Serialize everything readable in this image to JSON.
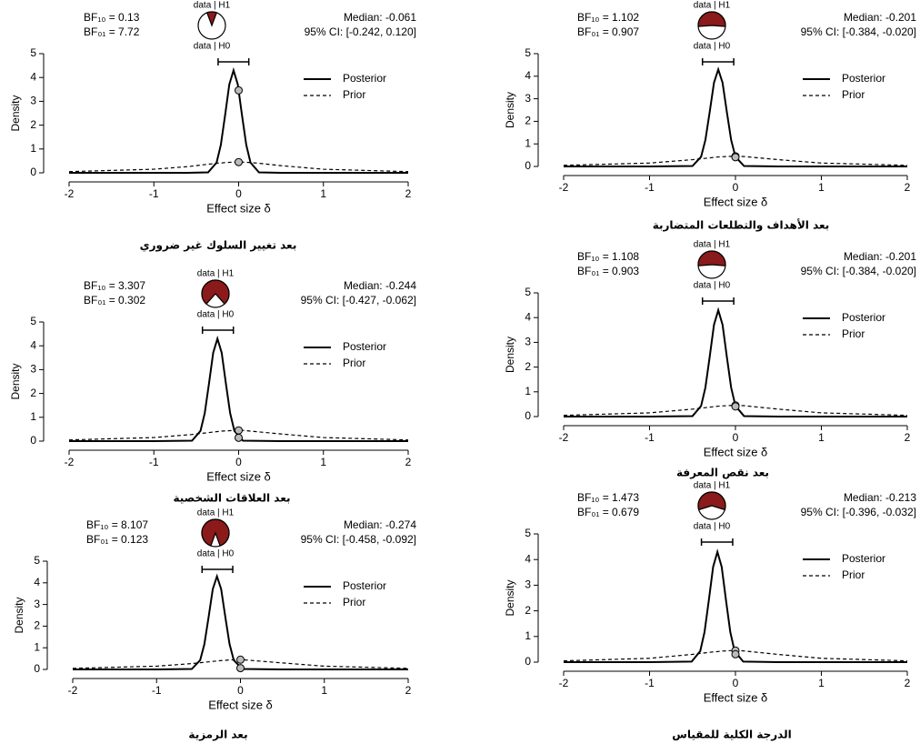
{
  "chart_data": [
    {
      "type": "prior_posterior",
      "title": "بعد تغيير السلوك غير ضروري",
      "xlabel": "Effect size δ",
      "ylabel": "Density",
      "bf10": {
        "value": 0.13,
        "label": "BF₁₀ = 0.13"
      },
      "bf01": "BF₀₁ = 7.72",
      "pie_labels": [
        "data | H1",
        "data | H0"
      ],
      "pie_color": "#8b1a1a",
      "median": "Median: -0.061",
      "ci": {
        "lower": -0.242,
        "upper": 0.12,
        "label": "95% CI: [-0.242, 0.120]"
      },
      "xlim": [
        -2,
        2
      ],
      "ylim": [
        0,
        5
      ],
      "xticks": [
        -2,
        -1,
        0,
        1,
        2
      ],
      "yticks": [
        0,
        1,
        2,
        3,
        4,
        5
      ],
      "x": [
        -2,
        -1,
        -0.6,
        -0.36,
        -0.26,
        -0.21,
        -0.16,
        -0.11,
        -0.06,
        -0.01,
        0.04,
        0.09,
        0.14,
        0.24,
        0.5,
        1,
        2
      ],
      "series": [
        {
          "name": "Posterior",
          "color": "#000000",
          "dashed": false,
          "values": [
            0,
            0,
            0,
            0.02,
            0.43,
            1.17,
            2.41,
            3.71,
            4.3,
            3.71,
            2.41,
            1.17,
            0.43,
            0.02,
            0,
            0,
            0
          ]
        },
        {
          "name": "Prior",
          "color": "#000000",
          "dashed": true,
          "values": [
            0.05,
            0.15,
            0.26,
            0.36,
            0.4,
            0.41,
            0.43,
            0.44,
            0.45,
            0.45,
            0.45,
            0.44,
            0.43,
            0.4,
            0.3,
            0.15,
            0.05
          ]
        }
      ],
      "markers": {
        "x": 0,
        "posterior": 3.46,
        "prior": 0.45
      }
    },
    {
      "type": "prior_posterior",
      "title": "بعد العلاقات الشخصية",
      "xlabel": "Effect size δ",
      "ylabel": "Density",
      "bf10": {
        "value": 3.307,
        "label": "BF₁₀ = 3.307"
      },
      "bf01": "BF₀₁ = 0.302",
      "pie_labels": [
        "data | H1",
        "data | H0"
      ],
      "pie_color": "#8b1a1a",
      "median": "Median: -0.244",
      "ci": {
        "lower": -0.427,
        "upper": -0.062,
        "label": "95% CI: [-0.427, -0.062]"
      },
      "xlim": [
        -2,
        2
      ],
      "ylim": [
        0,
        5
      ],
      "xticks": [
        -2,
        -1,
        0,
        1,
        2
      ],
      "yticks": [
        0,
        1,
        2,
        3,
        4,
        5
      ],
      "x": [
        -2,
        -1,
        -0.55,
        -0.45,
        -0.4,
        -0.35,
        -0.3,
        -0.25,
        -0.2,
        -0.15,
        -0.1,
        -0.05,
        0.05,
        0.5,
        1,
        2
      ],
      "series": [
        {
          "name": "Posterior",
          "color": "#000000",
          "dashed": false,
          "values": [
            0,
            0,
            0.02,
            0.43,
            1.17,
            2.41,
            3.71,
            4.3,
            3.71,
            2.41,
            1.17,
            0.43,
            0.02,
            0,
            0,
            0
          ]
        },
        {
          "name": "Prior",
          "color": "#000000",
          "dashed": true,
          "values": [
            0.05,
            0.15,
            0.28,
            0.32,
            0.34,
            0.36,
            0.38,
            0.4,
            0.42,
            0.43,
            0.44,
            0.45,
            0.45,
            0.3,
            0.15,
            0.05
          ]
        }
      ],
      "markers": {
        "x": 0,
        "posterior": 0.14,
        "prior": 0.45
      }
    },
    {
      "type": "prior_posterior",
      "title": "بعد الرمزية",
      "xlabel": "Effect size δ",
      "ylabel": "Density",
      "bf10": {
        "value": 8.107,
        "label": "BF₁₀ = 8.107"
      },
      "bf01": "BF₀₁ = 0.123",
      "pie_labels": [
        "data | H1",
        "data | H0"
      ],
      "pie_color": "#8b1a1a",
      "median": "Median: -0.274",
      "ci": {
        "lower": -0.458,
        "upper": -0.092,
        "label": "95% CI: [-0.458, -0.092]"
      },
      "xlim": [
        -2,
        2
      ],
      "ylim": [
        0,
        5
      ],
      "xticks": [
        -2,
        -1,
        0,
        1,
        2
      ],
      "yticks": [
        0,
        1,
        2,
        3,
        4,
        5
      ],
      "x": [
        -2,
        -1,
        -0.58,
        -0.48,
        -0.43,
        -0.38,
        -0.33,
        -0.28,
        -0.23,
        -0.18,
        -0.13,
        -0.08,
        0.02,
        0.5,
        1,
        2
      ],
      "series": [
        {
          "name": "Posterior",
          "color": "#000000",
          "dashed": false,
          "values": [
            0,
            0,
            0.02,
            0.43,
            1.17,
            2.41,
            3.71,
            4.3,
            3.71,
            2.41,
            1.17,
            0.43,
            0.02,
            0,
            0,
            0
          ]
        },
        {
          "name": "Prior",
          "color": "#000000",
          "dashed": true,
          "values": [
            0.05,
            0.15,
            0.27,
            0.31,
            0.33,
            0.35,
            0.37,
            0.39,
            0.41,
            0.42,
            0.44,
            0.44,
            0.45,
            0.3,
            0.15,
            0.05
          ]
        }
      ],
      "markers": {
        "x": 0,
        "posterior": 0.06,
        "prior": 0.45
      }
    },
    {
      "type": "prior_posterior",
      "title": "بعد الأهداف والتطلعات المتضاربة",
      "xlabel": "Effect size δ",
      "ylabel": "Density",
      "bf10": {
        "value": 1.102,
        "label": "BF₁₀ = 1.102"
      },
      "bf01": "BF₀₁ = 0.907",
      "pie_labels": [
        "data | H1",
        "data | H0"
      ],
      "pie_color": "#8b1a1a",
      "median": "Median: -0.201",
      "ci": {
        "lower": -0.384,
        "upper": -0.02,
        "label": "95% CI: [-0.384, -0.020]"
      },
      "xlim": [
        -2,
        2
      ],
      "ylim": [
        0,
        5
      ],
      "xticks": [
        -2,
        -1,
        0,
        1,
        2
      ],
      "yticks": [
        0,
        1,
        2,
        3,
        4,
        5
      ],
      "x": [
        -2,
        -1,
        -0.5,
        -0.4,
        -0.35,
        -0.3,
        -0.25,
        -0.2,
        -0.15,
        -0.1,
        -0.05,
        0,
        0.1,
        0.5,
        1,
        2
      ],
      "series": [
        {
          "name": "Posterior",
          "color": "#000000",
          "dashed": false,
          "values": [
            0,
            0,
            0.02,
            0.43,
            1.17,
            2.41,
            3.71,
            4.3,
            3.71,
            2.41,
            1.17,
            0.43,
            0.02,
            0,
            0,
            0
          ]
        },
        {
          "name": "Prior",
          "color": "#000000",
          "dashed": true,
          "values": [
            0.05,
            0.15,
            0.3,
            0.34,
            0.36,
            0.38,
            0.4,
            0.42,
            0.43,
            0.44,
            0.45,
            0.45,
            0.44,
            0.3,
            0.15,
            0.05
          ]
        }
      ],
      "markers": {
        "x": 0,
        "posterior": 0.41,
        "prior": 0.45
      }
    },
    {
      "type": "prior_posterior",
      "title": "بعد نقص المعرفة",
      "xlabel": "Effect size δ",
      "ylabel": "Density",
      "bf10": {
        "value": 1.108,
        "label": "BF₁₀ = 1.108"
      },
      "bf01": "BF₀₁ = 0.903",
      "pie_labels": [
        "data | H1",
        "data | H0"
      ],
      "pie_color": "#8b1a1a",
      "median": "Median: -0.201",
      "ci": {
        "lower": -0.384,
        "upper": -0.02,
        "label": "95% CI: [-0.384, -0.020]"
      },
      "xlim": [
        -2,
        2
      ],
      "ylim": [
        0,
        5
      ],
      "xticks": [
        -2,
        -1,
        0,
        1,
        2
      ],
      "yticks": [
        0,
        1,
        2,
        3,
        4,
        5
      ],
      "x": [
        -2,
        -1,
        -0.5,
        -0.4,
        -0.35,
        -0.3,
        -0.25,
        -0.2,
        -0.15,
        -0.1,
        -0.05,
        0,
        0.1,
        0.5,
        1,
        2
      ],
      "series": [
        {
          "name": "Posterior",
          "color": "#000000",
          "dashed": false,
          "values": [
            0,
            0,
            0.02,
            0.43,
            1.17,
            2.41,
            3.71,
            4.3,
            3.71,
            2.41,
            1.17,
            0.43,
            0.02,
            0,
            0,
            0
          ]
        },
        {
          "name": "Prior",
          "color": "#000000",
          "dashed": true,
          "values": [
            0.05,
            0.15,
            0.3,
            0.34,
            0.36,
            0.38,
            0.4,
            0.42,
            0.43,
            0.44,
            0.45,
            0.45,
            0.44,
            0.3,
            0.15,
            0.05
          ]
        }
      ],
      "markers": {
        "x": 0,
        "posterior": 0.41,
        "prior": 0.45
      }
    },
    {
      "type": "prior_posterior",
      "title": "الدرجة الكلية للمقياس",
      "xlabel": "Effect size δ",
      "ylabel": "Density",
      "bf10": {
        "value": 1.473,
        "label": "BF₁₀ = 1.473"
      },
      "bf01": "BF₀₁ = 0.679",
      "pie_labels": [
        "data | H1",
        "data | H0"
      ],
      "pie_color": "#8b1a1a",
      "median": "Median: -0.213",
      "ci": {
        "lower": -0.396,
        "upper": -0.032,
        "label": "95% CI: [-0.396, -0.032]"
      },
      "xlim": [
        -2,
        2
      ],
      "ylim": [
        0,
        5
      ],
      "xticks": [
        -2,
        -1,
        0,
        1,
        2
      ],
      "yticks": [
        0,
        1,
        2,
        3,
        4,
        5
      ],
      "x": [
        -2,
        -1,
        -0.51,
        -0.41,
        -0.36,
        -0.31,
        -0.26,
        -0.21,
        -0.16,
        -0.11,
        -0.06,
        -0.01,
        0.09,
        0.5,
        1,
        2
      ],
      "series": [
        {
          "name": "Posterior",
          "color": "#000000",
          "dashed": false,
          "values": [
            0,
            0,
            0.02,
            0.43,
            1.17,
            2.41,
            3.71,
            4.3,
            3.71,
            2.41,
            1.17,
            0.43,
            0.02,
            0,
            0,
            0
          ]
        },
        {
          "name": "Prior",
          "color": "#000000",
          "dashed": true,
          "values": [
            0.05,
            0.15,
            0.3,
            0.34,
            0.36,
            0.38,
            0.4,
            0.41,
            0.43,
            0.44,
            0.45,
            0.45,
            0.44,
            0.3,
            0.15,
            0.05
          ]
        }
      ],
      "markers": {
        "x": 0,
        "posterior": 0.31,
        "prior": 0.45
      }
    }
  ]
}
